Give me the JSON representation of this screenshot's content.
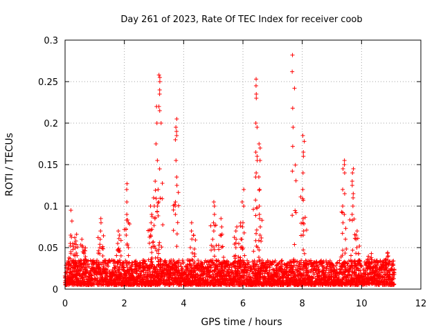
{
  "chart_data": {
    "type": "scatter",
    "title": "Day 261 of 2023, Rate Of TEC Index for receiver coob",
    "xlabel": "GPS time / hours",
    "ylabel": "ROTI / TECUs",
    "xlim": [
      0,
      12
    ],
    "ylim": [
      0,
      0.3
    ],
    "x_ticks": [
      0,
      2,
      4,
      6,
      8,
      10,
      12
    ],
    "x_tick_labels": [
      "0",
      "2",
      "4",
      "6",
      "8",
      "10",
      "12"
    ],
    "y_ticks": [
      0,
      0.05,
      0.1,
      0.15,
      0.2,
      0.25,
      0.3
    ],
    "y_tick_labels": [
      "0",
      "0.05",
      "0.1",
      "0.15",
      "0.2",
      "0.25",
      "0.3"
    ],
    "grid": true,
    "marker": "+",
    "color": "#ff0000",
    "baseline": {
      "x_start": 0,
      "x_end": 11.1,
      "y_low": 0.005,
      "y_high": 0.035
    },
    "bursts": [
      {
        "x": 0.2,
        "values": [
          0.095,
          0.082,
          0.065,
          0.055,
          0.045
        ]
      },
      {
        "x": 0.35,
        "values": [
          0.066,
          0.062,
          0.058
        ]
      },
      {
        "x": 0.6,
        "values": [
          0.06,
          0.052,
          0.045
        ]
      },
      {
        "x": 1.2,
        "values": [
          0.085,
          0.08,
          0.07,
          0.06,
          0.05
        ]
      },
      {
        "x": 1.8,
        "values": [
          0.07,
          0.065,
          0.055
        ]
      },
      {
        "x": 2.1,
        "values": [
          0.127,
          0.12,
          0.105,
          0.09,
          0.08,
          0.065,
          0.05
        ]
      },
      {
        "x": 2.9,
        "values": [
          0.1,
          0.09,
          0.08,
          0.065,
          0.05
        ]
      },
      {
        "x": 3.0,
        "values": [
          0.13,
          0.11,
          0.1,
          0.085
        ]
      },
      {
        "x": 3.1,
        "values": [
          0.22,
          0.2,
          0.175,
          0.155,
          0.12,
          0.1
        ]
      },
      {
        "x": 3.2,
        "values": [
          0.258,
          0.255,
          0.25,
          0.24,
          0.235,
          0.22,
          0.215,
          0.2
        ]
      },
      {
        "x": 3.75,
        "values": [
          0.205,
          0.195,
          0.19,
          0.185,
          0.18,
          0.155,
          0.135,
          0.125,
          0.105,
          0.1,
          0.09
        ]
      },
      {
        "x": 4.3,
        "values": [
          0.08,
          0.07,
          0.065
        ]
      },
      {
        "x": 5.0,
        "values": [
          0.105,
          0.1,
          0.09,
          0.08,
          0.07,
          0.06
        ]
      },
      {
        "x": 5.25,
        "values": [
          0.085,
          0.075,
          0.065
        ]
      },
      {
        "x": 5.8,
        "values": [
          0.075,
          0.07,
          0.06,
          0.05
        ]
      },
      {
        "x": 6.0,
        "values": [
          0.12,
          0.105,
          0.1,
          0.08,
          0.075,
          0.06
        ]
      },
      {
        "x": 6.45,
        "values": [
          0.253,
          0.245,
          0.235,
          0.23,
          0.2,
          0.195,
          0.165,
          0.16,
          0.155,
          0.14,
          0.135
        ]
      },
      {
        "x": 6.55,
        "values": [
          0.175,
          0.17,
          0.155,
          0.12,
          0.1,
          0.09,
          0.085,
          0.075,
          0.065
        ]
      },
      {
        "x": 7.7,
        "values": [
          0.282,
          0.262,
          0.242,
          0.218,
          0.195,
          0.172
        ]
      },
      {
        "x": 8.05,
        "values": [
          0.185,
          0.178,
          0.165,
          0.16,
          0.14,
          0.12,
          0.085,
          0.08,
          0.07,
          0.065
        ]
      },
      {
        "x": 9.4,
        "values": [
          0.155,
          0.15,
          0.145,
          0.14,
          0.12,
          0.115,
          0.1,
          0.09,
          0.08
        ]
      },
      {
        "x": 9.7,
        "values": [
          0.145,
          0.14,
          0.13,
          0.125,
          0.115,
          0.11,
          0.1,
          0.09
        ]
      },
      {
        "x": 9.85,
        "values": [
          0.07,
          0.065,
          0.06,
          0.05
        ]
      },
      {
        "x": 10.3,
        "values": [
          0.03,
          0.025
        ]
      },
      {
        "x": 10.8,
        "values": [
          0.032,
          0.028
        ]
      }
    ]
  }
}
